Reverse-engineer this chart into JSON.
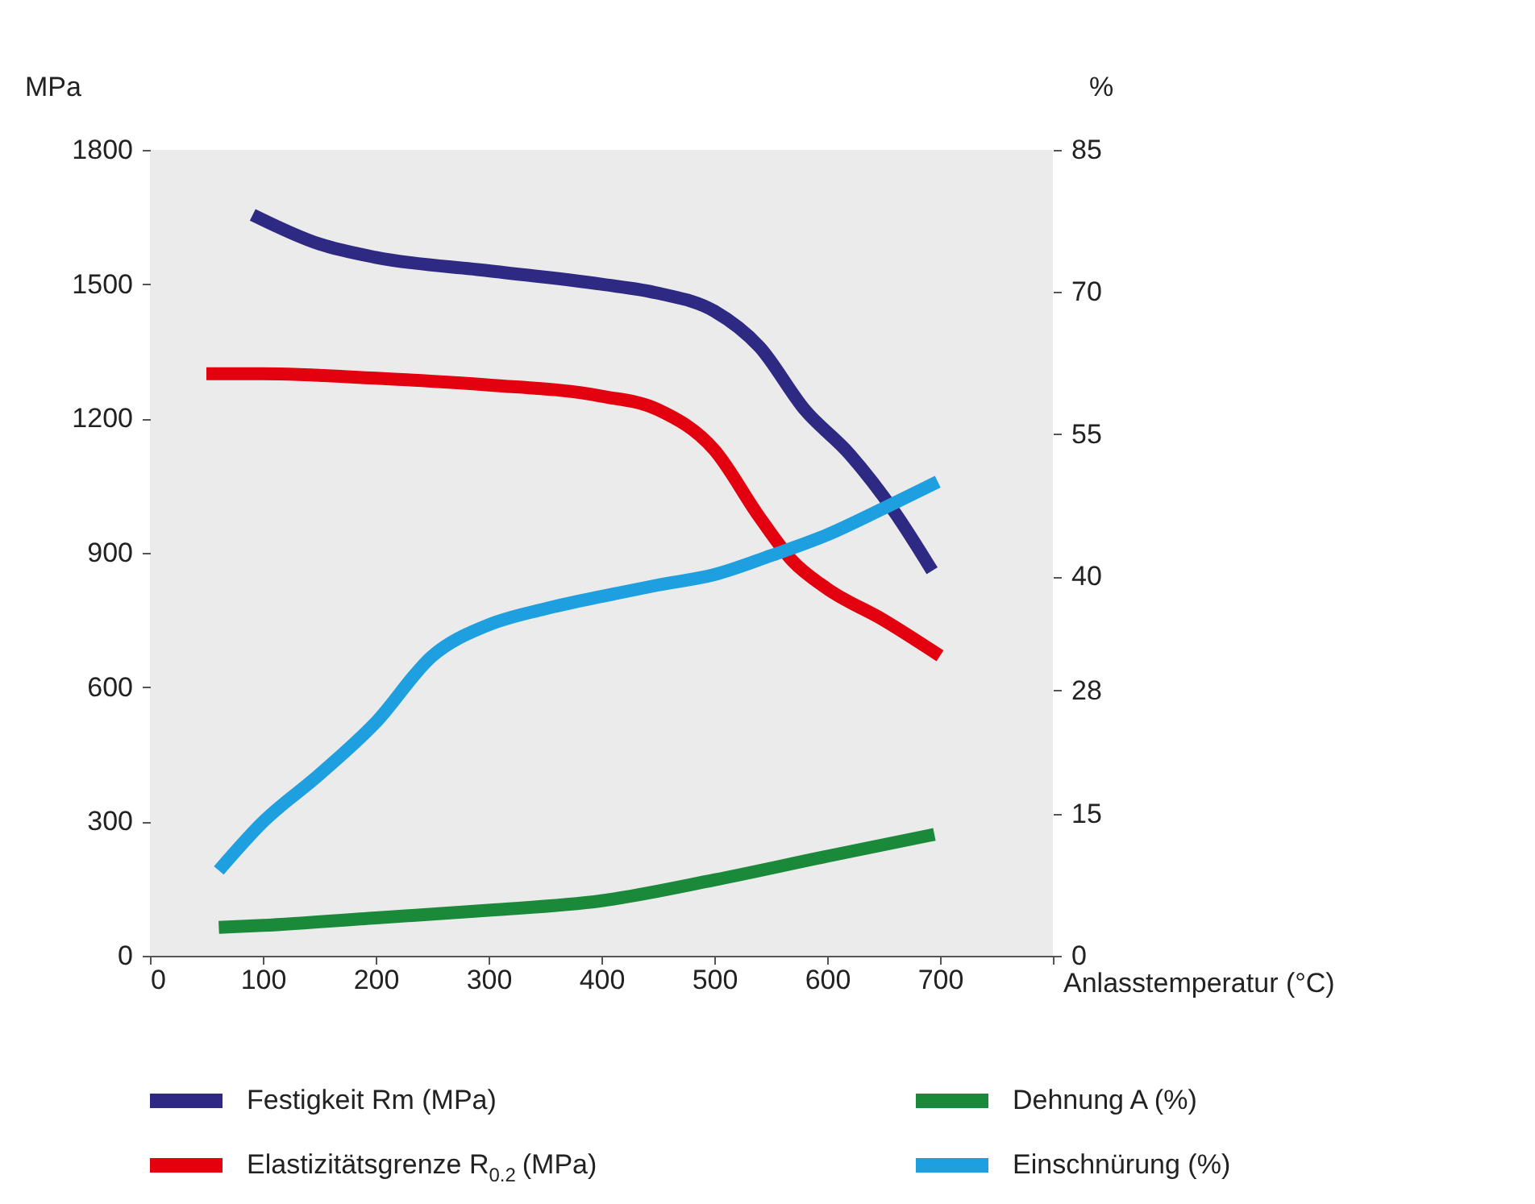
{
  "chart_data": {
    "type": "line",
    "xlabel": "Anlasstemperatur (°C)",
    "ylabel": "MPa",
    "y2label": "%",
    "xlim": [
      0,
      800
    ],
    "xticks": [
      0,
      100,
      200,
      300,
      400,
      500,
      600,
      700,
      {
        "value": 800,
        "label": null
      }
    ],
    "ylim": [
      0,
      1800
    ],
    "yticks": [
      0,
      300,
      600,
      900,
      1200,
      1500,
      1800
    ],
    "y2lim": [
      0,
      85
    ],
    "y2ticks": [
      0,
      15,
      28,
      40,
      55,
      70,
      85
    ],
    "grid": false,
    "legend": "bottom",
    "marker": "none",
    "line_style": "solid",
    "series": [
      {
        "name": "Festigkeit Rm (MPa)",
        "color": "#2e2a84",
        "x": [
          91,
          150,
          200,
          300,
          400,
          450,
          500,
          540,
          580,
          620,
          660,
          693
        ],
        "values": [
          1655,
          1590,
          1560,
          1530,
          1500,
          1480,
          1440,
          1360,
          1220,
          1120,
          990,
          860
        ]
      },
      {
        "name": "Elastizitätsgrenze R$_{0.2}$ (MPa)",
        "color": "#e3000f",
        "x": [
          50,
          100,
          200,
          300,
          400,
          450,
          500,
          540,
          570,
          600,
          650,
          700
        ],
        "values": [
          1300,
          1300,
          1290,
          1275,
          1250,
          1220,
          1130,
          980,
          880,
          820,
          750,
          670
        ]
      },
      {
        "name": "Dehnung A (%)",
        "color": "#1a8a3a",
        "x": [
          61,
          100,
          200,
          300,
          400,
          500,
          600,
          695
        ],
        "values": [
          3.0,
          3.2,
          4.0,
          4.8,
          5.8,
          8.0,
          10.5,
          12.8
        ],
        "axis": "y2"
      },
      {
        "name": "Einschnürung (%)",
        "color": "#1ea0e0",
        "x": [
          61,
          100,
          150,
          200,
          250,
          300,
          350,
          400,
          450,
          500,
          550,
          600,
          650,
          698
        ],
        "values": [
          9.0,
          14.1,
          19.1,
          24.6,
          31.6,
          34.9,
          36.6,
          37.9,
          39.1,
          40.2,
          42.2,
          44.4,
          47.2,
          50.0
        ],
        "axis": "y2"
      }
    ]
  }
}
